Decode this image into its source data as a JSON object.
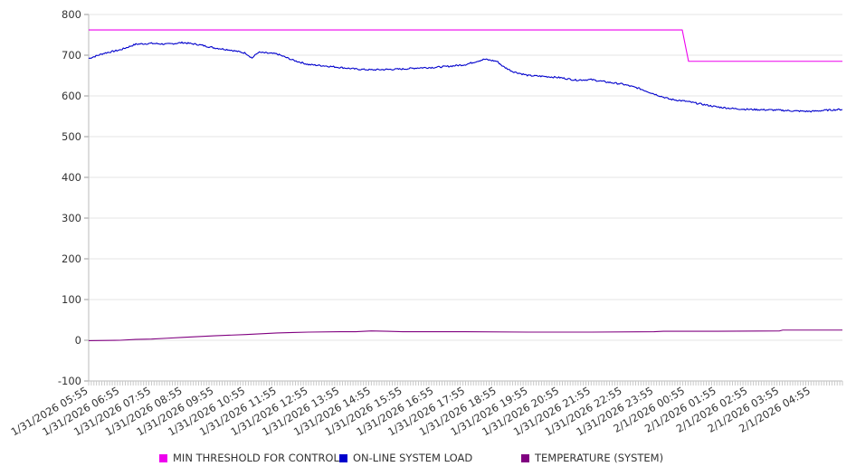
{
  "chart_data": {
    "type": "line",
    "title": "",
    "xlabel": "",
    "ylabel": "",
    "ylim": [
      -100,
      800
    ],
    "yticks": [
      -100,
      0,
      100,
      200,
      300,
      400,
      500,
      600,
      700,
      800
    ],
    "grid": "horizontal",
    "legend_position": "bottom",
    "categories": [
      "1/31/2026 05:55",
      "1/31/2026 06:55",
      "1/31/2026 07:55",
      "1/31/2026 08:55",
      "1/31/2026 09:55",
      "1/31/2026 10:55",
      "1/31/2026 11:55",
      "1/31/2026 12:55",
      "1/31/2026 13:55",
      "1/31/2026 14:55",
      "1/31/2026 15:55",
      "1/31/2026 16:55",
      "1/31/2026 17:55",
      "1/31/2026 18:55",
      "1/31/2026 19:55",
      "1/31/2026 20:55",
      "1/31/2026 21:55",
      "1/31/2026 22:55",
      "1/31/2026 23:55",
      "2/1/2026 00:55",
      "2/1/2026 01:55",
      "2/1/2026 02:55",
      "2/1/2026 03:55",
      "2/1/2026 04:55"
    ],
    "series": [
      {
        "name": "MIN THRESHOLD FOR CONTROL",
        "color": "#ee00ee",
        "points": [
          [
            0,
            762
          ],
          [
            18.9,
            762
          ],
          [
            19.1,
            685
          ],
          [
            24,
            685
          ]
        ]
      },
      {
        "name": "ON-LINE SYSTEM LOAD",
        "color": "#0000cc",
        "points": [
          [
            0,
            692
          ],
          [
            0.5,
            705
          ],
          [
            1,
            713
          ],
          [
            1.5,
            727
          ],
          [
            2,
            729
          ],
          [
            2.5,
            727
          ],
          [
            3,
            731
          ],
          [
            3.5,
            726
          ],
          [
            4,
            718
          ],
          [
            4.5,
            713
          ],
          [
            5,
            705
          ],
          [
            5.2,
            693
          ],
          [
            5.4,
            707
          ],
          [
            6,
            703
          ],
          [
            6.5,
            688
          ],
          [
            7,
            677
          ],
          [
            7.5,
            674
          ],
          [
            8,
            670
          ],
          [
            8.5,
            666
          ],
          [
            9,
            664
          ],
          [
            9.5,
            665
          ],
          [
            10,
            666
          ],
          [
            10.5,
            669
          ],
          [
            11,
            670
          ],
          [
            11.5,
            673
          ],
          [
            12,
            677
          ],
          [
            12.4,
            686
          ],
          [
            12.6,
            690
          ],
          [
            13,
            685
          ],
          [
            13.2,
            672
          ],
          [
            13.5,
            660
          ],
          [
            14,
            650
          ],
          [
            14.5,
            648
          ],
          [
            15,
            645
          ],
          [
            15.5,
            639
          ],
          [
            16,
            640
          ],
          [
            16.5,
            634
          ],
          [
            17,
            629
          ],
          [
            17.5,
            619
          ],
          [
            18,
            605
          ],
          [
            18.5,
            592
          ],
          [
            19,
            587
          ],
          [
            19.5,
            580
          ],
          [
            20,
            573
          ],
          [
            20.5,
            569
          ],
          [
            21,
            567
          ],
          [
            21.5,
            566
          ],
          [
            22,
            565
          ],
          [
            22.5,
            563
          ],
          [
            23,
            562
          ],
          [
            23.5,
            565
          ],
          [
            24,
            567
          ]
        ]
      },
      {
        "name": "TEMPERATURE (SYSTEM)",
        "color": "#800080",
        "points": [
          [
            0,
            -1
          ],
          [
            1,
            0
          ],
          [
            1.5,
            2
          ],
          [
            2,
            3
          ],
          [
            2.5,
            5
          ],
          [
            3,
            7
          ],
          [
            4,
            11
          ],
          [
            5,
            14
          ],
          [
            6,
            18
          ],
          [
            6.5,
            19
          ],
          [
            7,
            20
          ],
          [
            8,
            21
          ],
          [
            8.5,
            21
          ],
          [
            9,
            23
          ],
          [
            9.5,
            22
          ],
          [
            10,
            21
          ],
          [
            12,
            21
          ],
          [
            14,
            20
          ],
          [
            16,
            20
          ],
          [
            18,
            21
          ],
          [
            18.3,
            22
          ],
          [
            20,
            22
          ],
          [
            22,
            23
          ],
          [
            22.1,
            25
          ],
          [
            24,
            25
          ]
        ]
      }
    ]
  }
}
